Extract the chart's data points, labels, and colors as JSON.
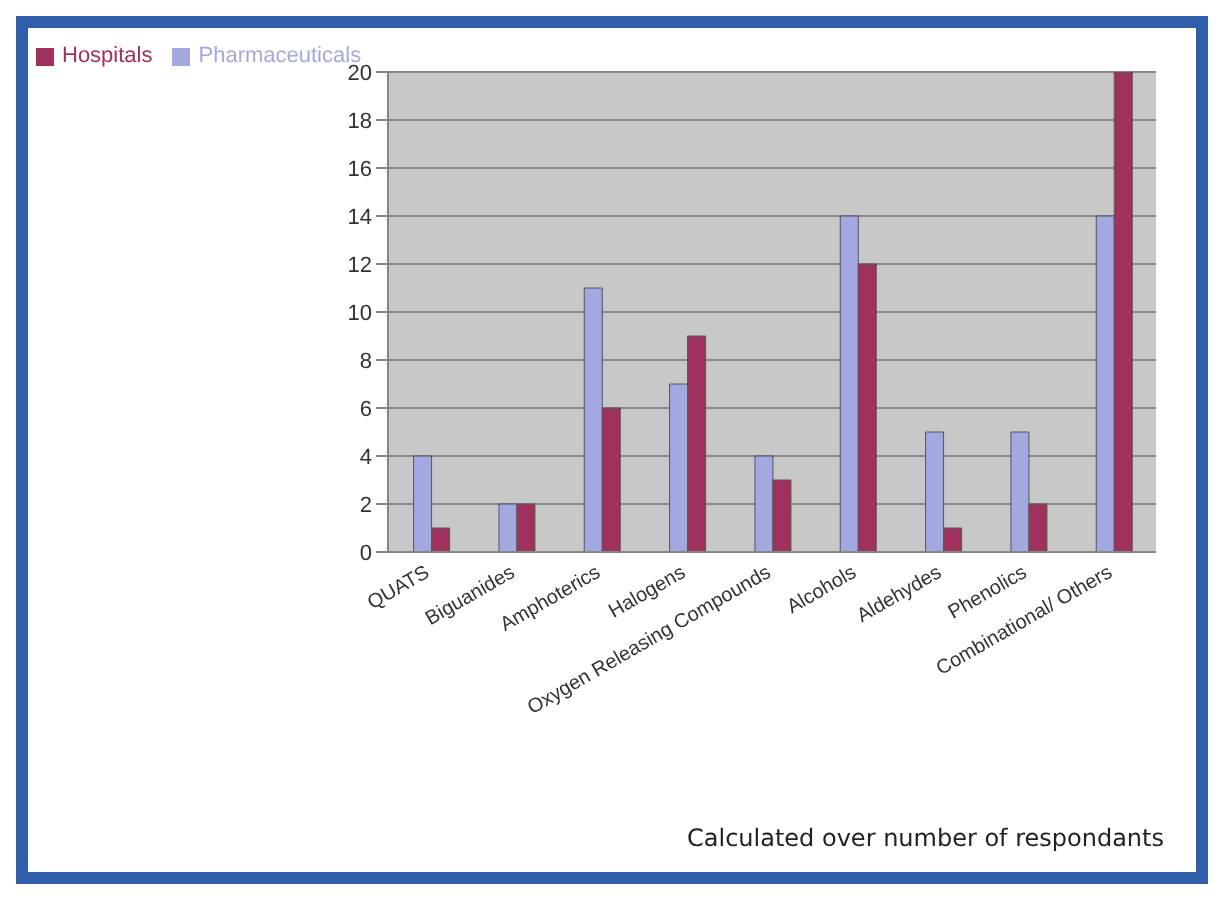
{
  "chart_data": {
    "type": "bar",
    "categories": [
      "QUATS",
      "Biguanides",
      "Amphoterics",
      "Halogens",
      "Oxygen Releasing Compounds",
      "Alcohols",
      "Aldehydes",
      "Phenolics",
      "Combinational/ Others"
    ],
    "series": [
      {
        "name": "Pharmaceuticals",
        "color": "#a3a8e0",
        "values": [
          4,
          2,
          11,
          7,
          4,
          14,
          5,
          5,
          14
        ]
      },
      {
        "name": "Hospitals",
        "color": "#a0305e",
        "values": [
          1,
          2,
          6,
          9,
          3,
          12,
          1,
          2,
          20
        ]
      }
    ],
    "ylim": [
      0,
      20
    ],
    "yticks": [
      0,
      2,
      4,
      6,
      8,
      10,
      12,
      14,
      16,
      18,
      20
    ],
    "grid": "y",
    "legend": "top left",
    "annotations": [
      "Calculated over number of respondants"
    ]
  }
}
